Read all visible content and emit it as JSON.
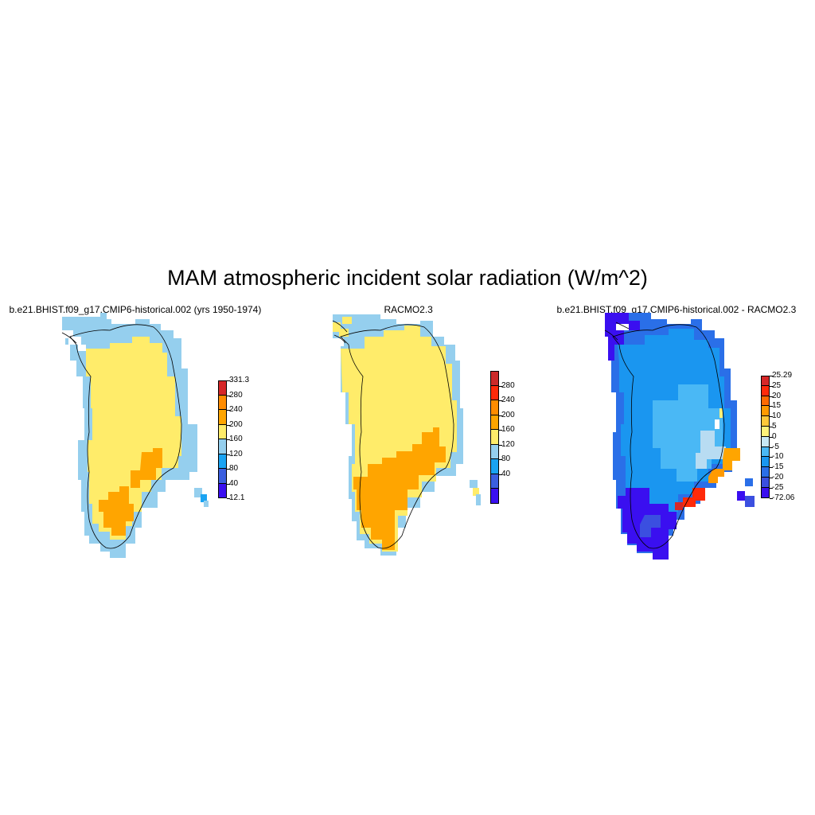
{
  "title": "MAM atmospheric incident solar radiation (W/m^2)",
  "panels": [
    {
      "id": "model",
      "title": "b.e21.BHIST.f09_g17.CMIP6-historical.002 (yrs 1950-1974)",
      "colorbar": {
        "labels": [
          "331.3",
          "280",
          "240",
          "200",
          "160",
          "120",
          "80",
          "40",
          "12.1"
        ],
        "colors": [
          "#d62728",
          "#ff8c00",
          "#ffa500",
          "#ffec6a",
          "#95cfee",
          "#1aa3f2",
          "#3b5fe0",
          "#3a0ff0"
        ]
      },
      "map": "model"
    },
    {
      "id": "obs",
      "title": "RACMO2.3",
      "colorbar": {
        "labels": [
          "280",
          "240",
          "200",
          "160",
          "120",
          "80",
          "40"
        ],
        "colors": [
          "#cc2a2a",
          "#ff2a0a",
          "#ff8c00",
          "#ffa500",
          "#ffec6a",
          "#95cfee",
          "#1aa3f2",
          "#3b5fe0",
          "#3a0ff0"
        ]
      },
      "map": "obs"
    },
    {
      "id": "diff",
      "title": "b.e21.BHIST.f09_g17.CMIP6-historical.002 - RACMO2.3",
      "colorbar": {
        "labels": [
          "25.29",
          "25",
          "20",
          "15",
          "10",
          "5",
          "0",
          "-5",
          "-10",
          "-15",
          "-20",
          "-25",
          "-72.06"
        ],
        "colors": [
          "#d62728",
          "#ff2a0a",
          "#ff6a00",
          "#ff9a00",
          "#ffc83a",
          "#fff27a",
          "#c8e8f5",
          "#4ab8f5",
          "#1a96f0",
          "#2a6fe8",
          "#3b4fe0",
          "#3a0ff0"
        ]
      },
      "map": "diff"
    }
  ]
}
